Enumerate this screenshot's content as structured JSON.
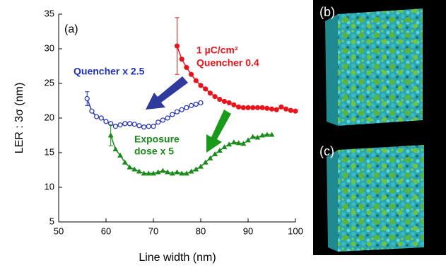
{
  "chart_data": {
    "type": "line",
    "xlabel": "Line width (nm)",
    "ylabel": "LER : 3σ (nm)",
    "xlim": [
      50,
      100
    ],
    "xticks": [
      50,
      60,
      70,
      80,
      90,
      100
    ],
    "ylim": [
      5,
      35
    ],
    "yticks": [
      5,
      10,
      15,
      20,
      25,
      30,
      35
    ],
    "annotations": [
      "(a)",
      "1 µC/cm²",
      "Quencher 0.4",
      "Quencher x 2.5",
      "Exposure",
      "dose x 5"
    ],
    "series": [
      {
        "color": "#e8141b",
        "marker": "filled-circle",
        "first_point_error": 4.1,
        "x": [
          75,
          76,
          77,
          78,
          79,
          80,
          81,
          82,
          83,
          84,
          85,
          86,
          87,
          88,
          89,
          90,
          91,
          92,
          93,
          94,
          95,
          96,
          97,
          98,
          99,
          100
        ],
        "values": [
          30.4,
          28.5,
          27.3,
          26.3,
          25.4,
          24.7,
          24.2,
          23.6,
          23.1,
          22.7,
          22.4,
          22.2,
          21.9,
          21.6,
          21.5,
          21.5,
          21.5,
          21.5,
          21.5,
          21.4,
          21.3,
          21.2,
          21.6,
          21.3,
          21.1,
          21.0
        ]
      },
      {
        "color": "#1f2fb8",
        "marker": "open-circle",
        "first_point_error": 1.0,
        "x": [
          56,
          57,
          58,
          59,
          60,
          61,
          62,
          63,
          64,
          65,
          66,
          67,
          68,
          69,
          70,
          71,
          72,
          73,
          74,
          75,
          76,
          77,
          78,
          79,
          80
        ],
        "values": [
          22.8,
          21.0,
          20.2,
          20.0,
          19.5,
          19.2,
          18.8,
          19.0,
          19.2,
          19.2,
          19.1,
          18.9,
          18.7,
          18.8,
          18.8,
          19.4,
          19.7,
          20.0,
          20.5,
          20.9,
          21.2,
          21.5,
          21.8,
          22.0,
          22.2
        ]
      },
      {
        "color": "#1a8a1a",
        "marker": "triangle",
        "first_point_error": 1.5,
        "x": [
          61,
          62,
          63,
          64,
          65,
          66,
          67,
          68,
          69,
          70,
          71,
          72,
          73,
          74,
          75,
          76,
          77,
          78,
          79,
          80,
          81,
          82,
          83,
          84,
          85,
          86,
          87,
          88,
          89,
          90,
          91,
          92,
          93,
          94,
          95
        ],
        "values": [
          17.5,
          15.5,
          14.6,
          13.6,
          12.9,
          12.6,
          12.3,
          12.0,
          12.0,
          12.0,
          12.2,
          12.4,
          12.2,
          12.0,
          12.2,
          12.0,
          12.0,
          12.3,
          12.6,
          13.0,
          13.6,
          14.2,
          14.8,
          15.3,
          15.8,
          16.2,
          16.5,
          16.4,
          16.3,
          16.8,
          17.3,
          17.2,
          17.5,
          17.6,
          17.6
        ]
      }
    ]
  },
  "panels": [
    "(b)",
    "(c)"
  ]
}
